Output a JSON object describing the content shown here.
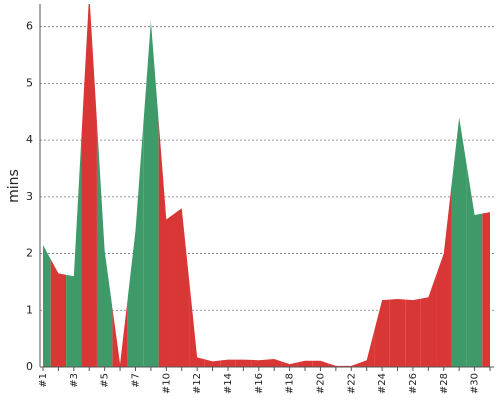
{
  "chart_data": {
    "type": "area",
    "y_label": "mins",
    "categories": [
      "#1",
      null,
      "#3",
      null,
      "#5",
      null,
      "#7",
      null,
      "#10",
      null,
      "#12",
      null,
      "#14",
      null,
      "#16",
      null,
      "#18",
      null,
      "#20",
      null,
      "#22",
      null,
      "#24",
      null,
      "#26",
      null,
      "#28",
      null,
      "#30",
      null
    ],
    "values": [
      2.15,
      1.65,
      1.6,
      6.6,
      2.05,
      0.05,
      2.4,
      6.1,
      2.6,
      2.8,
      0.17,
      0.1,
      0.13,
      0.13,
      0.12,
      0.14,
      0.05,
      0.11,
      0.11,
      0.02,
      0.02,
      0.12,
      1.18,
      1.2,
      1.18,
      1.23,
      2.0,
      4.4,
      2.68,
      2.73
    ],
    "point_colors": [
      "#3f9a6a",
      "#d93636",
      "#3f9a6a",
      "#d93636",
      "#3f9a6a",
      "#d93636",
      "#3f9a6a",
      "#3f9a6a",
      "#d93636",
      "#d93636",
      "#d93636",
      "#d93636",
      "#d93636",
      "#d93636",
      "#d93636",
      "#d93636",
      "#d93636",
      "#d93636",
      "#d93636",
      "#d93636",
      "#d93636",
      "#d93636",
      "#d93636",
      "#d93636",
      "#d93636",
      "#d93636",
      "#d93636",
      "#3f9a6a",
      "#3f9a6a",
      "#d93636"
    ],
    "ylim": [
      0,
      6.4
    ],
    "yticks": [
      0,
      1,
      2,
      3,
      4,
      5,
      6
    ],
    "grid": true
  }
}
